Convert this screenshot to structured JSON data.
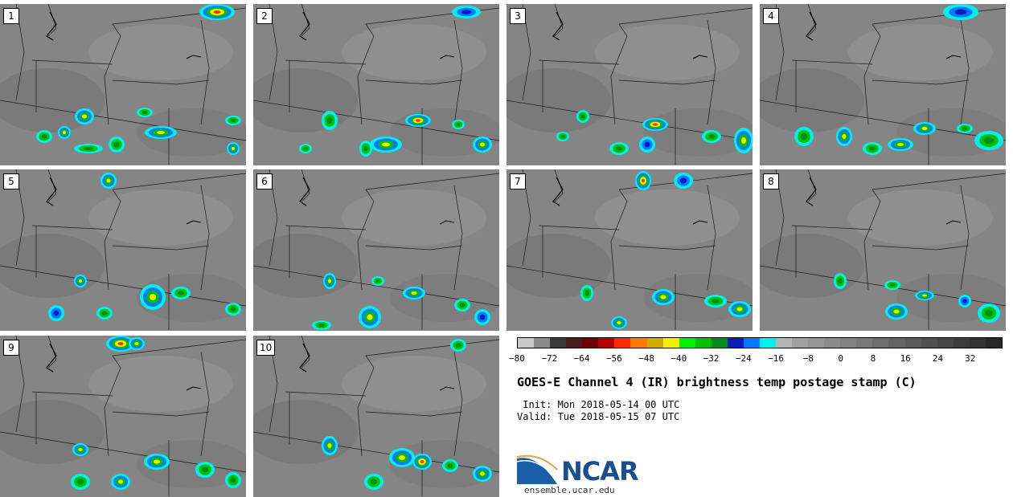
{
  "panels": [
    {
      "label": "1"
    },
    {
      "label": "2"
    },
    {
      "label": "3"
    },
    {
      "label": "4"
    },
    {
      "label": "5"
    },
    {
      "label": "6"
    },
    {
      "label": "7"
    },
    {
      "label": "8"
    },
    {
      "label": "9"
    },
    {
      "label": "10"
    }
  ],
  "colorbar": {
    "colors": [
      "#c8c8c8",
      "#8a8a8a",
      "#383838",
      "#4a1c1c",
      "#6e0000",
      "#b40000",
      "#ff2a00",
      "#ff7800",
      "#d4aa00",
      "#f5f000",
      "#00f000",
      "#00c000",
      "#008c1e",
      "#0a1eb4",
      "#0078ff",
      "#00f0f0",
      "#b4b4b4",
      "#a0a0a0",
      "#969696",
      "#8c8c8c",
      "#828282",
      "#787878",
      "#6e6e6e",
      "#646464",
      "#5a5a5a",
      "#505050",
      "#464646",
      "#3c3c3c",
      "#323232",
      "#282828"
    ],
    "ticks": [
      "−80",
      "−72",
      "−64",
      "−56",
      "−48",
      "−40",
      "−32",
      "−24",
      "−16",
      "−8",
      "0",
      "8",
      "16",
      "24",
      "32"
    ]
  },
  "title": "GOES-E Channel 4 (IR) brightness temp postage stamp (C)",
  "init": " Init: Mon 2018-05-14 00 UTC",
  "valid": "Valid: Tue 2018-05-15 07 UTC",
  "logo": {
    "name": "NCAR",
    "url": "ensemble.ucar.edu",
    "color": "#1a4f8f"
  }
}
